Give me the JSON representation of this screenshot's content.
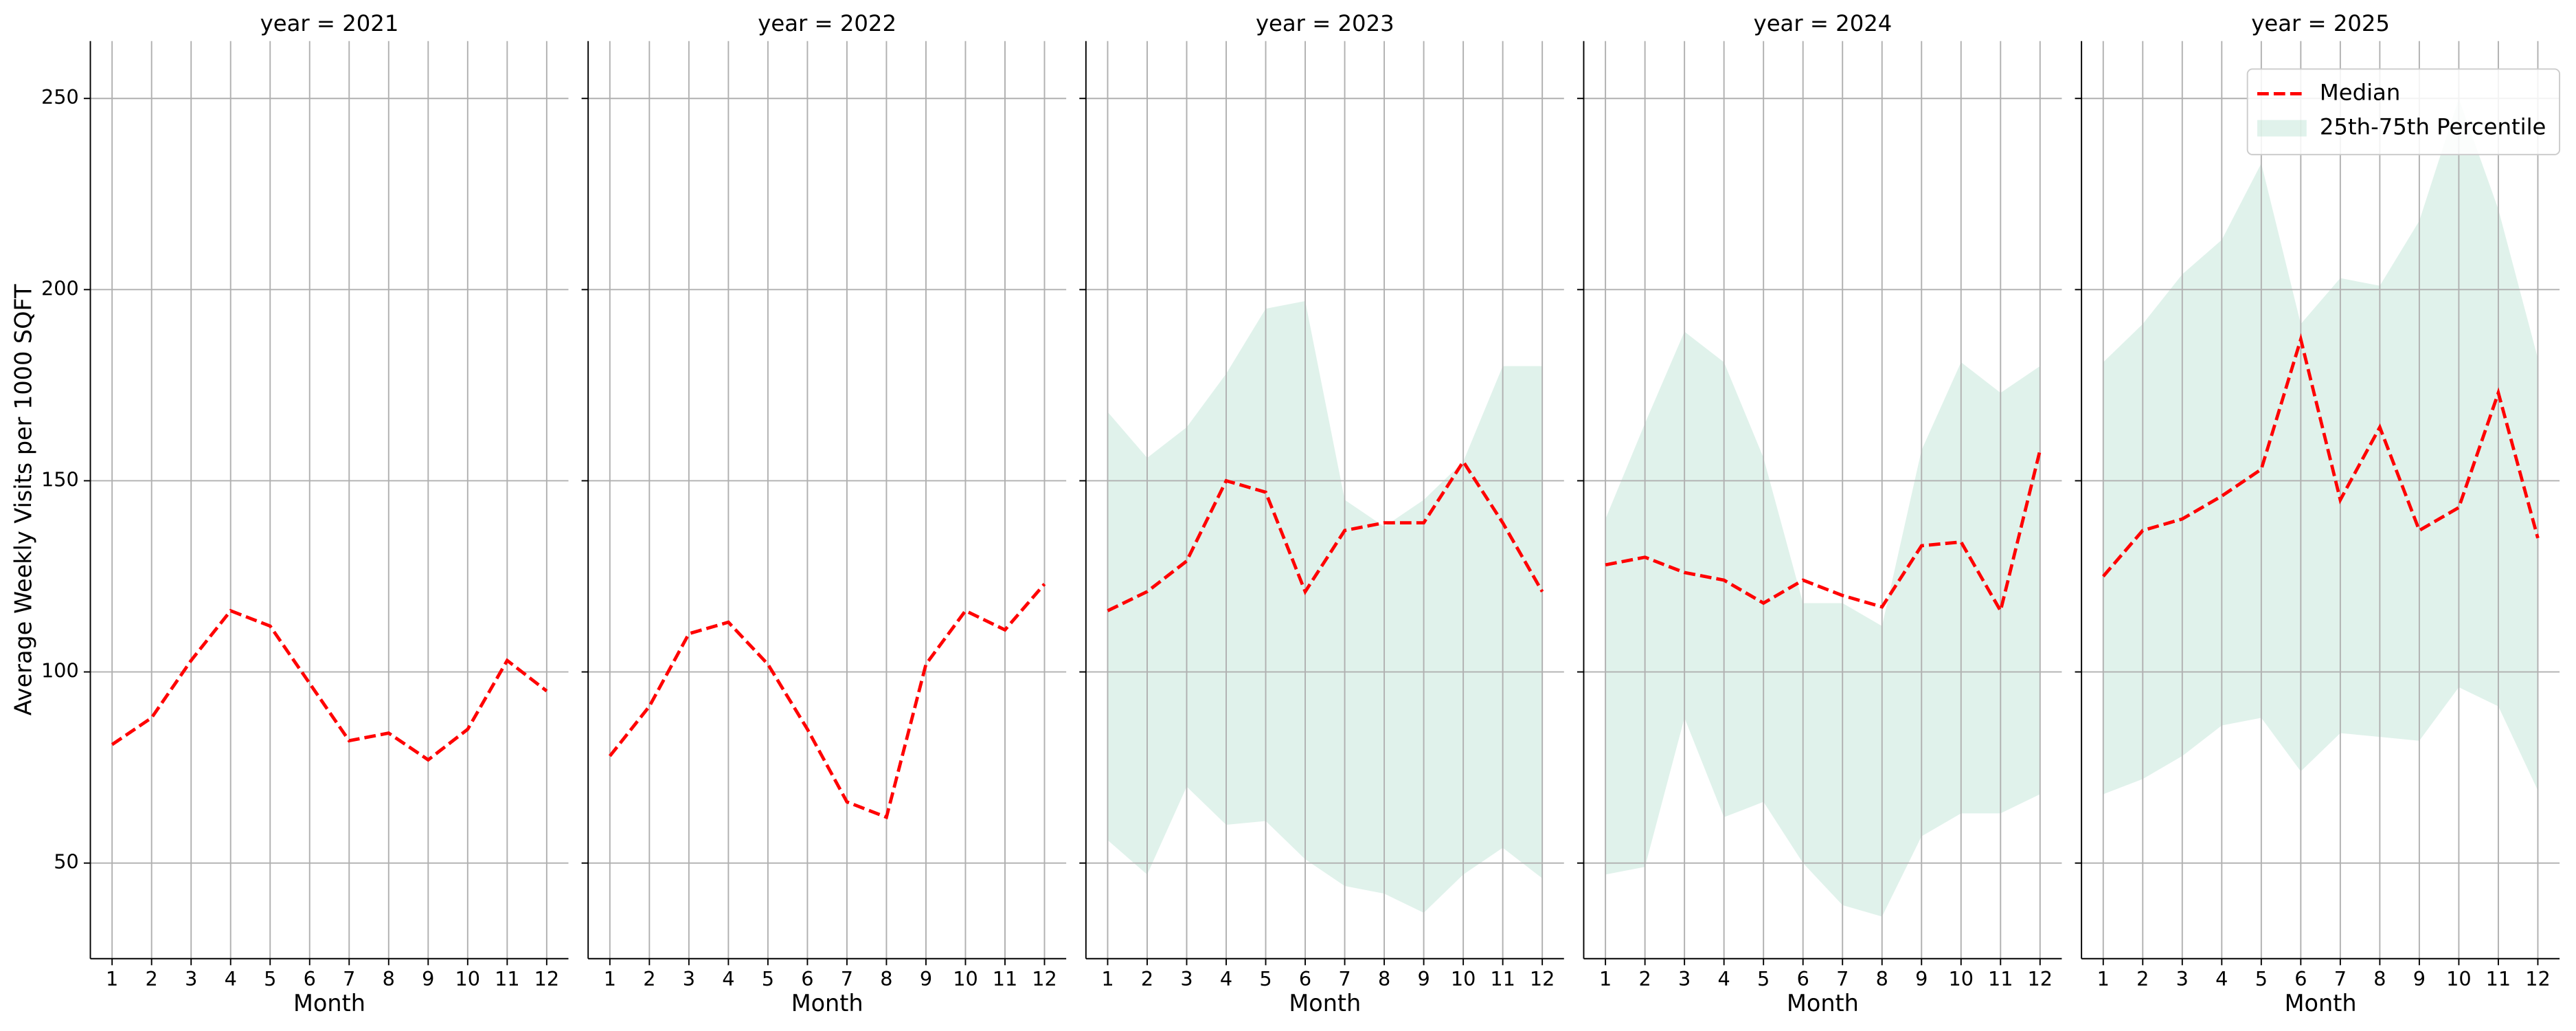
{
  "chart_data": [
    {
      "type": "line",
      "title": "year = 2021",
      "xlabel": "Month",
      "ylabel": "Average Weekly Visits per 1000 SQFT",
      "x": [
        1,
        2,
        3,
        4,
        5,
        6,
        7,
        8,
        9,
        10,
        11,
        12
      ],
      "xlim": [
        0.45,
        12.55
      ],
      "xticks": [
        1,
        2,
        3,
        4,
        5,
        6,
        7,
        8,
        9,
        10,
        11,
        12
      ],
      "ylim": [
        25,
        265
      ],
      "yticks": [
        50,
        100,
        150,
        200,
        250
      ],
      "grid": true,
      "series": [
        {
          "name": "Median",
          "color": "#ff0000",
          "values": [
            81,
            88,
            103,
            116,
            112,
            97,
            82,
            84,
            77,
            85,
            103,
            95
          ]
        }
      ]
    },
    {
      "type": "line",
      "title": "year = 2022",
      "xlabel": "Month",
      "x": [
        1,
        2,
        3,
        4,
        5,
        6,
        7,
        8,
        9,
        10,
        11,
        12
      ],
      "xlim": [
        0.45,
        12.55
      ],
      "xticks": [
        1,
        2,
        3,
        4,
        5,
        6,
        7,
        8,
        9,
        10,
        11,
        12
      ],
      "ylim": [
        25,
        265
      ],
      "grid": true,
      "series": [
        {
          "name": "Median",
          "color": "#ff0000",
          "values": [
            78,
            91,
            110,
            113,
            102,
            85,
            66,
            62,
            102,
            116,
            111,
            123
          ]
        }
      ]
    },
    {
      "type": "line",
      "title": "year = 2023",
      "xlabel": "Month",
      "x": [
        1,
        2,
        3,
        4,
        5,
        6,
        7,
        8,
        9,
        10,
        11,
        12
      ],
      "xlim": [
        0.45,
        12.55
      ],
      "xticks": [
        1,
        2,
        3,
        4,
        5,
        6,
        7,
        8,
        9,
        10,
        11,
        12
      ],
      "ylim": [
        25,
        265
      ],
      "grid": true,
      "series": [
        {
          "name": "Median",
          "color": "#ff0000",
          "values": [
            116,
            121,
            129,
            150,
            147,
            121,
            137,
            139,
            139,
            155,
            139,
            121
          ]
        },
        {
          "name": "25th-75th Percentile",
          "color": "#a6dac6",
          "lower": [
            56,
            47,
            70,
            60,
            61,
            51,
            44,
            42,
            37,
            47,
            54,
            46
          ],
          "upper": [
            168,
            156,
            164,
            178,
            195,
            197,
            145,
            138,
            145,
            155,
            180,
            180
          ]
        }
      ]
    },
    {
      "type": "line",
      "title": "year = 2024",
      "xlabel": "Month",
      "x": [
        1,
        2,
        3,
        4,
        5,
        6,
        7,
        8,
        9,
        10,
        11,
        12
      ],
      "xlim": [
        0.45,
        12.55
      ],
      "xticks": [
        1,
        2,
        3,
        4,
        5,
        6,
        7,
        8,
        9,
        10,
        11,
        12
      ],
      "ylim": [
        25,
        265
      ],
      "grid": true,
      "series": [
        {
          "name": "Median",
          "color": "#ff0000",
          "values": [
            128,
            130,
            126,
            124,
            118,
            124,
            120,
            117,
            133,
            134,
            116,
            158
          ]
        },
        {
          "name": "25th-75th Percentile",
          "color": "#a6dac6",
          "lower": [
            47,
            49,
            88,
            62,
            66,
            50,
            39,
            36,
            57,
            63,
            63,
            68
          ],
          "upper": [
            140,
            165,
            189,
            181,
            156,
            118,
            118,
            112,
            158,
            181,
            173,
            180
          ]
        }
      ]
    },
    {
      "type": "line",
      "title": "year = 2025",
      "xlabel": "Month",
      "x": [
        1,
        2,
        3,
        4,
        5,
        6,
        7,
        8,
        9,
        10,
        11,
        12
      ],
      "xlim": [
        0.45,
        12.55
      ],
      "xticks": [
        1,
        2,
        3,
        4,
        5,
        6,
        7,
        8,
        9,
        10,
        11,
        12
      ],
      "ylim": [
        25,
        265
      ],
      "grid": true,
      "legend": "upper right",
      "series": [
        {
          "name": "Median",
          "color": "#ff0000",
          "values": [
            125,
            137,
            140,
            146,
            153,
            187,
            145,
            164,
            137,
            143,
            173,
            135
          ]
        },
        {
          "name": "25th-75th Percentile",
          "color": "#a6dac6",
          "lower": [
            68,
            72,
            78,
            86,
            88,
            74,
            84,
            83,
            82,
            96,
            91,
            69
          ],
          "upper": [
            181,
            191,
            204,
            213,
            233,
            191,
            203,
            201,
            218,
            250,
            221,
            182
          ]
        }
      ]
    }
  ]
}
